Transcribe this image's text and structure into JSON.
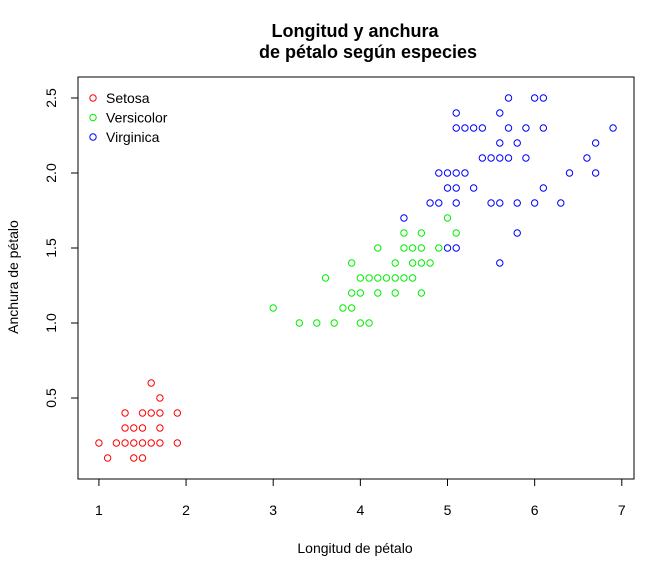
{
  "chart_data": {
    "type": "scatter",
    "title_line1": "Longitud y anchura",
    "title_line2": "de pétalo según especies",
    "xlabel": "Longitud de pétalo",
    "ylabel": "Anchura de pétalo",
    "xlim": [
      0.76,
      7.14
    ],
    "ylim": [
      -0.04,
      2.64
    ],
    "xticks": [
      1,
      2,
      3,
      4,
      5,
      6,
      7
    ],
    "xtick_labels": [
      "1",
      "2",
      "3",
      "4",
      "5",
      "6",
      "7"
    ],
    "yticks": [
      0.5,
      1.0,
      1.5,
      2.0,
      2.5
    ],
    "ytick_labels": [
      "0.5",
      "1.0",
      "1.5",
      "2.0",
      "2.5"
    ],
    "grid": false,
    "legend_position": "top-left",
    "series": [
      {
        "name": "Setosa",
        "color": "#ff0000",
        "points": [
          [
            1.0,
            0.2
          ],
          [
            1.1,
            0.1
          ],
          [
            1.2,
            0.2
          ],
          [
            1.3,
            0.2
          ],
          [
            1.3,
            0.3
          ],
          [
            1.3,
            0.4
          ],
          [
            1.4,
            0.1
          ],
          [
            1.4,
            0.2
          ],
          [
            1.4,
            0.3
          ],
          [
            1.5,
            0.1
          ],
          [
            1.5,
            0.2
          ],
          [
            1.5,
            0.3
          ],
          [
            1.5,
            0.4
          ],
          [
            1.6,
            0.2
          ],
          [
            1.6,
            0.4
          ],
          [
            1.6,
            0.6
          ],
          [
            1.7,
            0.2
          ],
          [
            1.7,
            0.3
          ],
          [
            1.7,
            0.4
          ],
          [
            1.7,
            0.5
          ],
          [
            1.9,
            0.2
          ],
          [
            1.9,
            0.4
          ]
        ]
      },
      {
        "name": "Versicolor",
        "color": "#00ee00",
        "points": [
          [
            3.0,
            1.1
          ],
          [
            3.3,
            1.0
          ],
          [
            3.5,
            1.0
          ],
          [
            3.6,
            1.3
          ],
          [
            3.7,
            1.0
          ],
          [
            3.8,
            1.1
          ],
          [
            3.9,
            1.1
          ],
          [
            3.9,
            1.2
          ],
          [
            3.9,
            1.4
          ],
          [
            4.0,
            1.0
          ],
          [
            4.0,
            1.2
          ],
          [
            4.0,
            1.3
          ],
          [
            4.1,
            1.0
          ],
          [
            4.1,
            1.3
          ],
          [
            4.2,
            1.2
          ],
          [
            4.2,
            1.3
          ],
          [
            4.2,
            1.5
          ],
          [
            4.3,
            1.3
          ],
          [
            4.4,
            1.2
          ],
          [
            4.4,
            1.3
          ],
          [
            4.4,
            1.4
          ],
          [
            4.5,
            1.3
          ],
          [
            4.5,
            1.5
          ],
          [
            4.5,
            1.6
          ],
          [
            4.6,
            1.3
          ],
          [
            4.6,
            1.4
          ],
          [
            4.6,
            1.5
          ],
          [
            4.7,
            1.2
          ],
          [
            4.7,
            1.4
          ],
          [
            4.7,
            1.5
          ],
          [
            4.7,
            1.6
          ],
          [
            4.8,
            1.4
          ],
          [
            4.9,
            1.5
          ],
          [
            5.0,
            1.7
          ],
          [
            5.1,
            1.6
          ]
        ]
      },
      {
        "name": "Virginica",
        "color": "#0000ff",
        "points": [
          [
            4.5,
            1.7
          ],
          [
            4.8,
            1.8
          ],
          [
            4.9,
            1.8
          ],
          [
            4.9,
            2.0
          ],
          [
            5.0,
            1.5
          ],
          [
            5.0,
            1.9
          ],
          [
            5.0,
            2.0
          ],
          [
            5.1,
            1.5
          ],
          [
            5.1,
            1.8
          ],
          [
            5.1,
            1.9
          ],
          [
            5.1,
            2.0
          ],
          [
            5.1,
            2.3
          ],
          [
            5.1,
            2.4
          ],
          [
            5.2,
            2.0
          ],
          [
            5.2,
            2.3
          ],
          [
            5.3,
            1.9
          ],
          [
            5.3,
            2.3
          ],
          [
            5.4,
            2.1
          ],
          [
            5.4,
            2.3
          ],
          [
            5.5,
            1.8
          ],
          [
            5.5,
            2.1
          ],
          [
            5.6,
            1.4
          ],
          [
            5.6,
            1.8
          ],
          [
            5.6,
            2.1
          ],
          [
            5.6,
            2.2
          ],
          [
            5.6,
            2.4
          ],
          [
            5.7,
            2.1
          ],
          [
            5.7,
            2.3
          ],
          [
            5.7,
            2.5
          ],
          [
            5.8,
            1.6
          ],
          [
            5.8,
            1.8
          ],
          [
            5.8,
            2.2
          ],
          [
            5.9,
            2.1
          ],
          [
            5.9,
            2.3
          ],
          [
            6.0,
            1.8
          ],
          [
            6.0,
            2.5
          ],
          [
            6.1,
            1.9
          ],
          [
            6.1,
            2.3
          ],
          [
            6.1,
            2.5
          ],
          [
            6.3,
            1.8
          ],
          [
            6.4,
            2.0
          ],
          [
            6.6,
            2.1
          ],
          [
            6.7,
            2.0
          ],
          [
            6.7,
            2.2
          ],
          [
            6.9,
            2.3
          ]
        ]
      }
    ]
  }
}
